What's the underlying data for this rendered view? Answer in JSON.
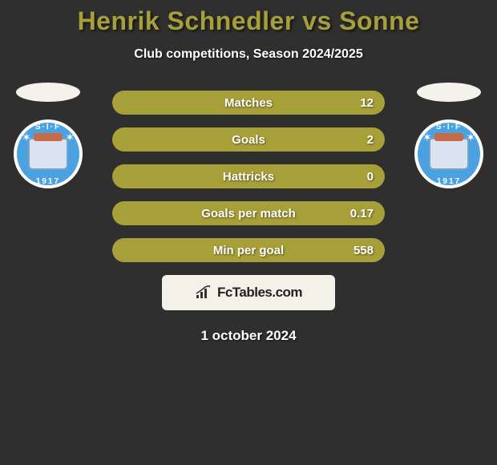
{
  "title": {
    "text": "Henrik Schnedler vs Sonne",
    "color": "#a7a039",
    "fontsize": 32
  },
  "subtitle": {
    "text": "Club competitions, Season 2024/2025",
    "fontsize": 16
  },
  "bars": {
    "bg_color": "#a7a039",
    "label_fontsize": 15,
    "value_fontsize": 15,
    "rows": [
      {
        "label": "Matches",
        "value": "12"
      },
      {
        "label": "Goals",
        "value": "2"
      },
      {
        "label": "Hattricks",
        "value": "0"
      },
      {
        "label": "Goals per match",
        "value": "0.17"
      },
      {
        "label": "Min per goal",
        "value": "558"
      }
    ]
  },
  "badge": {
    "ring_color": "#4aa3e0",
    "ring_border": "#ffffff",
    "top_text": "S·I·F",
    "bottom_text": "1917"
  },
  "attribution": {
    "bg_color": "#f4f2e8",
    "text": "FcTables.com",
    "text_color": "#222222",
    "fontsize": 17
  },
  "date": {
    "text": "1 october 2024",
    "fontsize": 17
  },
  "background_color": "#2f2f2f"
}
